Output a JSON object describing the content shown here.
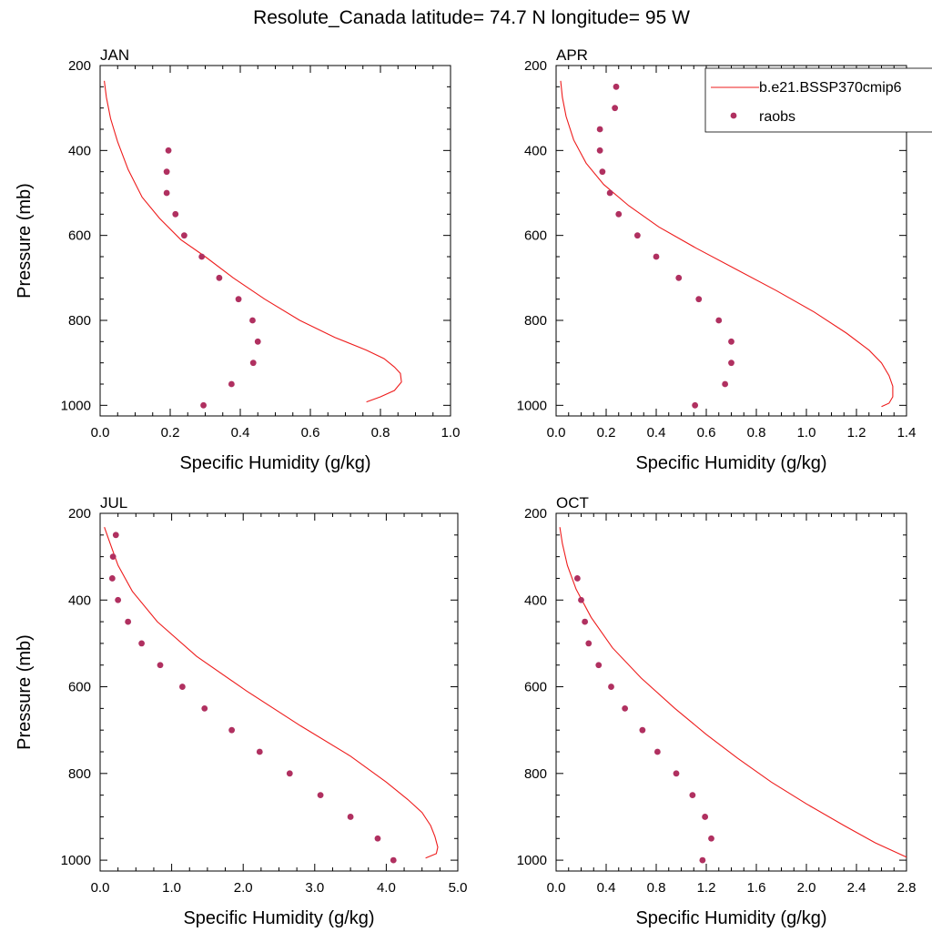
{
  "figure_title": "Resolute_Canada  latitude= 74.7 N longitude= 95 W",
  "colors": {
    "model": "#ee1c1c",
    "obs": "#b03060"
  },
  "legend": {
    "model_label": "b.e21.BSSP370cmip6",
    "obs_label": "raobs"
  },
  "chart_data": [
    {
      "type": "line",
      "panel": "JAN",
      "xlabel": "Specific Humidity (g/kg)",
      "ylabel": "Pressure (mb)",
      "xlim": [
        0,
        1.0
      ],
      "ylim": [
        200,
        1025
      ],
      "y_inverted": true,
      "xticks": [
        0.0,
        0.2,
        0.4,
        0.6,
        0.8,
        1.0
      ],
      "xtick_labels": [
        "0.0",
        "0.2",
        "0.4",
        "0.6",
        "0.8",
        "1.0"
      ],
      "yticks": [
        200,
        400,
        600,
        800,
        1000
      ],
      "ytick_labels": [
        "200",
        "400",
        "600",
        "800",
        "1000"
      ],
      "series": [
        {
          "name": "b.e21.BSSP370cmip6",
          "kind": "line",
          "x": [
            0.012,
            0.018,
            0.03,
            0.05,
            0.08,
            0.12,
            0.17,
            0.23,
            0.3,
            0.38,
            0.47,
            0.57,
            0.67,
            0.76,
            0.81,
            0.84,
            0.857,
            0.86,
            0.84,
            0.8,
            0.76
          ],
          "y": [
            236,
            275,
            325,
            380,
            445,
            510,
            560,
            610,
            650,
            700,
            750,
            800,
            840,
            870,
            890,
            910,
            925,
            945,
            965,
            980,
            992
          ]
        },
        {
          "name": "raobs",
          "kind": "scatter",
          "x": [
            0.195,
            0.19,
            0.19,
            0.215,
            0.24,
            0.29,
            0.34,
            0.395,
            0.435,
            0.45,
            0.437,
            0.375,
            0.295
          ],
          "y": [
            400,
            450,
            500,
            550,
            600,
            650,
            700,
            750,
            800,
            850,
            900,
            950,
            1000
          ]
        }
      ]
    },
    {
      "type": "line",
      "panel": "APR",
      "xlabel": "Specific Humidity (g/kg)",
      "ylabel": "",
      "xlim": [
        0,
        1.4
      ],
      "ylim": [
        200,
        1025
      ],
      "y_inverted": true,
      "xticks": [
        0.0,
        0.2,
        0.4,
        0.6,
        0.8,
        1.0,
        1.2,
        1.4
      ],
      "xtick_labels": [
        "0.0",
        "0.2",
        "0.4",
        "0.6",
        "0.8",
        "1.0",
        "1.2",
        "1.4"
      ],
      "yticks": [
        200,
        400,
        600,
        800,
        1000
      ],
      "ytick_labels": [
        "200",
        "400",
        "600",
        "800",
        "1000"
      ],
      "series": [
        {
          "name": "b.e21.BSSP370cmip6",
          "kind": "line",
          "x": [
            0.018,
            0.025,
            0.04,
            0.07,
            0.12,
            0.19,
            0.29,
            0.41,
            0.56,
            0.72,
            0.88,
            1.03,
            1.16,
            1.25,
            1.3,
            1.33,
            1.345,
            1.345,
            1.33,
            1.3
          ],
          "y": [
            236,
            275,
            320,
            375,
            430,
            480,
            530,
            580,
            630,
            680,
            730,
            780,
            830,
            870,
            900,
            930,
            955,
            980,
            995,
            1003
          ]
        },
        {
          "name": "raobs",
          "kind": "scatter",
          "x": [
            0.24,
            0.235,
            0.175,
            0.175,
            0.185,
            0.215,
            0.25,
            0.325,
            0.4,
            0.49,
            0.57,
            0.65,
            0.7,
            0.7,
            0.675,
            0.555
          ],
          "y": [
            250,
            300,
            350,
            400,
            450,
            500,
            550,
            600,
            650,
            700,
            750,
            800,
            850,
            900,
            950,
            1000
          ]
        }
      ]
    },
    {
      "type": "line",
      "panel": "JUL",
      "xlabel": "Specific Humidity (g/kg)",
      "ylabel": "Pressure (mb)",
      "xlim": [
        0,
        5.0
      ],
      "ylim": [
        200,
        1025
      ],
      "y_inverted": true,
      "xticks": [
        0.0,
        1.0,
        2.0,
        3.0,
        4.0,
        5.0
      ],
      "xtick_labels": [
        "0.0",
        "1.0",
        "2.0",
        "3.0",
        "4.0",
        "5.0"
      ],
      "yticks": [
        200,
        400,
        600,
        800,
        1000
      ],
      "ytick_labels": [
        "200",
        "400",
        "600",
        "800",
        "1000"
      ],
      "series": [
        {
          "name": "b.e21.BSSP370cmip6",
          "kind": "line",
          "x": [
            0.06,
            0.12,
            0.25,
            0.45,
            0.8,
            1.35,
            2.05,
            2.8,
            3.5,
            4.0,
            4.3,
            4.5,
            4.62,
            4.68,
            4.72,
            4.7,
            4.55
          ],
          "y": [
            232,
            260,
            320,
            380,
            450,
            530,
            610,
            690,
            760,
            820,
            860,
            890,
            920,
            945,
            970,
            985,
            995
          ]
        },
        {
          "name": "raobs",
          "kind": "scatter",
          "x": [
            0.22,
            0.18,
            0.17,
            0.25,
            0.39,
            0.58,
            0.84,
            1.15,
            1.46,
            1.84,
            2.23,
            2.65,
            3.08,
            3.5,
            3.88,
            4.1
          ],
          "y": [
            250,
            300,
            350,
            400,
            450,
            500,
            550,
            600,
            650,
            700,
            750,
            800,
            850,
            900,
            950,
            1000
          ]
        }
      ]
    },
    {
      "type": "line",
      "panel": "OCT",
      "xlabel": "Specific Humidity (g/kg)",
      "ylabel": "",
      "xlim": [
        0,
        2.8
      ],
      "ylim": [
        200,
        1025
      ],
      "y_inverted": true,
      "xticks": [
        0.0,
        0.4,
        0.8,
        1.2,
        1.6,
        2.0,
        2.4,
        2.8
      ],
      "xtick_labels": [
        "0.0",
        "0.4",
        "0.8",
        "1.2",
        "1.6",
        "2.0",
        "2.4",
        "2.8"
      ],
      "yticks": [
        200,
        400,
        600,
        800,
        1000
      ],
      "ytick_labels": [
        "200",
        "400",
        "600",
        "800",
        "1000"
      ],
      "series": [
        {
          "name": "b.e21.BSSP370cmip6",
          "kind": "line",
          "x": [
            0.03,
            0.05,
            0.09,
            0.16,
            0.28,
            0.45,
            0.68,
            0.95,
            1.2,
            1.45,
            1.72,
            2.0,
            2.3,
            2.55,
            2.8
          ],
          "y": [
            232,
            270,
            320,
            375,
            440,
            510,
            580,
            650,
            710,
            765,
            820,
            870,
            920,
            960,
            993
          ]
        },
        {
          "name": "raobs",
          "kind": "scatter",
          "x": [
            0.17,
            0.2,
            0.23,
            0.26,
            0.34,
            0.44,
            0.55,
            0.69,
            0.81,
            0.96,
            1.09,
            1.19,
            1.24,
            1.17
          ],
          "y": [
            350,
            400,
            450,
            500,
            550,
            600,
            650,
            700,
            750,
            800,
            850,
            900,
            950,
            1000
          ]
        }
      ]
    }
  ]
}
